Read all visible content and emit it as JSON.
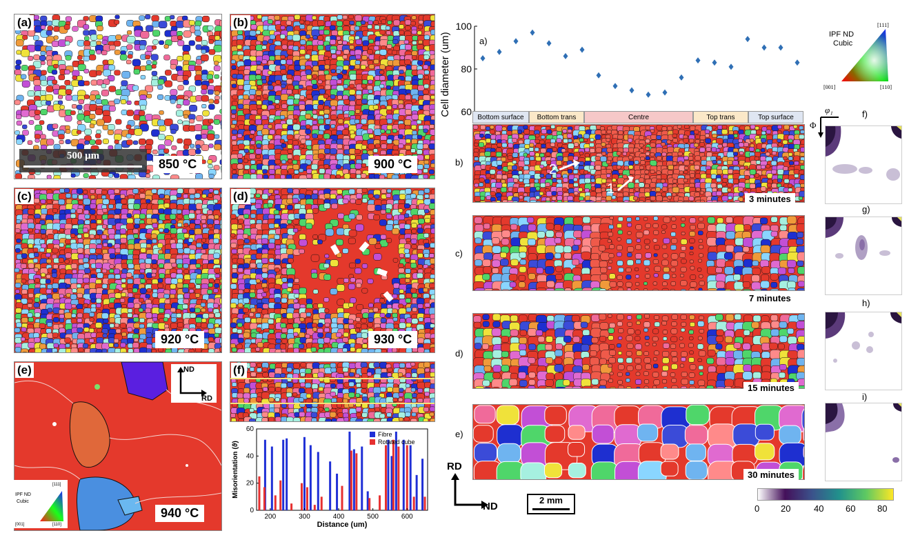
{
  "left_panels": {
    "a": {
      "label": "(a)",
      "temp": "850 °C",
      "scalebar": "500 μm"
    },
    "b": {
      "label": "(b)",
      "temp": "900 °C"
    },
    "c": {
      "label": "(c)",
      "temp": "920 °C"
    },
    "d": {
      "label": "(d)",
      "temp": "930 °C"
    },
    "e": {
      "label": "(e)",
      "temp": "940 °C",
      "axis_nd": "ND",
      "axis_rd": "RD"
    },
    "f": {
      "label": "(f)"
    }
  },
  "ipf_legend": {
    "title": "IPF ND",
    "subtitle": "Cubic",
    "c111": "[111]",
    "c001": "[001]",
    "c110": "[110]"
  },
  "chart_data": [
    {
      "type": "bar",
      "title": "",
      "xlabel": "Distance (um)",
      "ylabel": "Misorientation (ϑ)",
      "xlim": [
        160,
        660
      ],
      "ylim": [
        0,
        60
      ],
      "xticks": [
        200,
        300,
        400,
        500,
        600
      ],
      "yticks": [
        0,
        20,
        40,
        60
      ],
      "series": [
        {
          "name": "Fibre",
          "color": "#1f2fd6",
          "x": [
            185,
            205,
            238,
            248,
            300,
            318,
            340,
            375,
            395,
            432,
            445,
            468,
            485,
            545,
            555,
            568,
            590,
            610,
            628,
            645
          ],
          "values": [
            52,
            47,
            52,
            53,
            54,
            48,
            43,
            36,
            27,
            58,
            45,
            47,
            14,
            52,
            40,
            58,
            52,
            48,
            26,
            38
          ]
        },
        {
          "name": "Rotated cube",
          "color": "#e63030",
          "x": [
            168,
            183,
            215,
            230,
            262,
            292,
            308,
            330,
            350,
            410,
            437,
            452,
            490,
            520,
            538,
            560,
            575,
            600,
            620,
            652
          ],
          "values": [
            25,
            17,
            11,
            22,
            5,
            20,
            17,
            4,
            10,
            18,
            44,
            42,
            9,
            11,
            48,
            52,
            47,
            48,
            10,
            10
          ]
        }
      ]
    },
    {
      "type": "scatter",
      "title": "",
      "xlabel": "",
      "ylabel": "Cell diameter (um)",
      "ylim": [
        60,
        100
      ],
      "yticks": [
        60,
        80,
        100
      ],
      "x": [
        1,
        2,
        3,
        4,
        5,
        6,
        7,
        8,
        9,
        10,
        11,
        12,
        13,
        14,
        15,
        16,
        17,
        18,
        19,
        20
      ],
      "values": [
        85,
        88,
        93,
        97,
        92,
        86,
        89,
        77,
        72,
        70,
        68,
        69,
        76,
        84,
        83,
        81,
        94,
        90,
        90,
        83
      ],
      "color": "#2f6fb5"
    }
  ],
  "right": {
    "a_label": "a)",
    "zones": [
      "Bottom surface",
      "Bottom trans",
      "Centre",
      "Top trans",
      "Top surface"
    ],
    "zone_colors": [
      "#dfe6f2",
      "#fbe8c8",
      "#f6c8c8",
      "#fbe8c8",
      "#dfe6f2"
    ],
    "strips": [
      {
        "label": "b)",
        "time": "3 minutes"
      },
      {
        "label": "c)",
        "time": "7 minutes"
      },
      {
        "label": "d)",
        "time": "15 minutes"
      },
      {
        "label": "e)",
        "time": "30 minutes"
      }
    ],
    "arrow_labels": [
      "2",
      "1"
    ],
    "pf_labels": [
      "f)",
      "g)",
      "h)",
      "i)"
    ],
    "phi1": "φ₁",
    "Phi": "Φ",
    "axis_rd": "RD",
    "axis_nd": "ND",
    "scale": "2 mm",
    "colorbar_ticks": [
      "0",
      "20",
      "40",
      "60",
      "80"
    ]
  }
}
